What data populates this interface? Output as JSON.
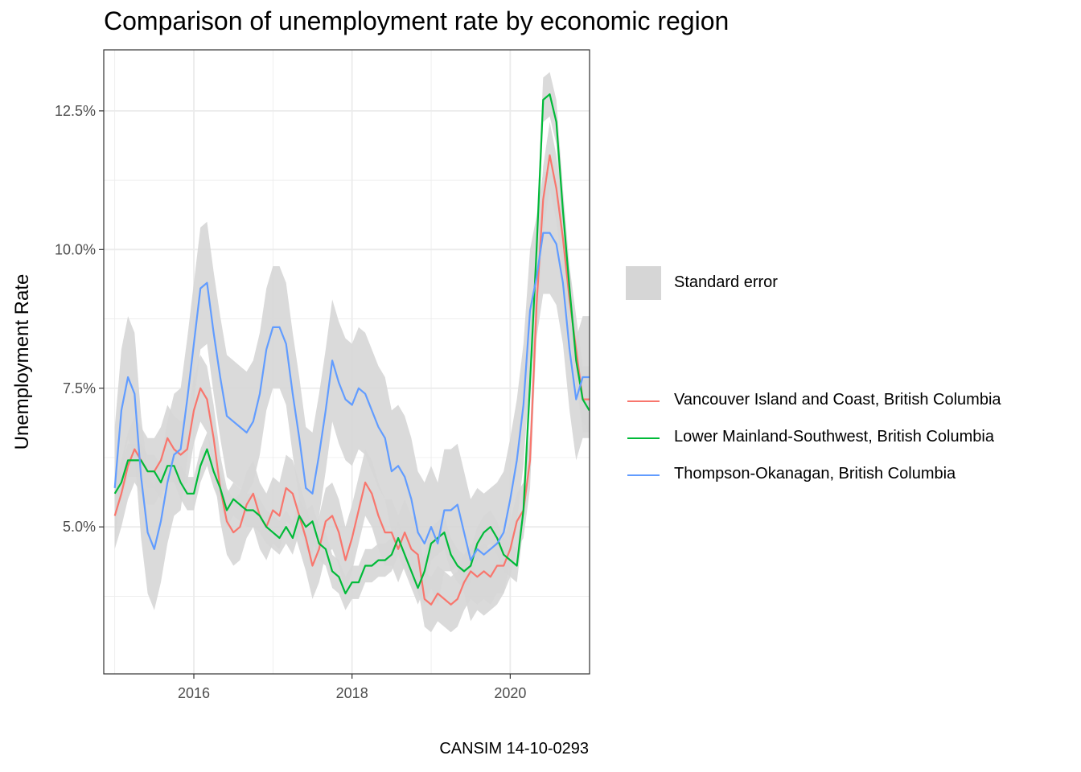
{
  "chart_data": {
    "type": "line",
    "title": "Comparison of unemployment rate by economic region",
    "ylabel": "Unemployment Rate",
    "xlabel": "",
    "caption": "CANSIM 14-10-0293",
    "x_ticks": [
      "2016",
      "2018",
      "2020"
    ],
    "y_ticks": [
      "5.0%",
      "7.5%",
      "10.0%",
      "12.5%"
    ],
    "y_tick_values": [
      5.0,
      7.5,
      10.0,
      12.5
    ],
    "xlim": [
      2014.861,
      2021.003
    ],
    "ylim": [
      2.35,
      13.6
    ],
    "grid": true,
    "legend_position": "right",
    "band_legend_label": "Standard error",
    "band_color": "#d6d6d6",
    "series": [
      {
        "name": "Vancouver Island and Coast, British Columbia",
        "color": "#F8766D",
        "start": "2015-01",
        "values": [
          5.2,
          5.6,
          6.1,
          6.4,
          6.2,
          6.0,
          6.0,
          6.2,
          6.6,
          6.4,
          6.3,
          6.4,
          7.1,
          7.5,
          7.3,
          6.6,
          5.7,
          5.1,
          4.9,
          5.0,
          5.4,
          5.6,
          5.2,
          5.0,
          5.3,
          5.2,
          5.7,
          5.6,
          5.2,
          4.8,
          4.3,
          4.6,
          5.1,
          5.2,
          4.9,
          4.4,
          4.8,
          5.3,
          5.8,
          5.6,
          5.2,
          4.9,
          4.9,
          4.6,
          4.9,
          4.6,
          4.5,
          3.7,
          3.6,
          3.8,
          3.7,
          3.6,
          3.7,
          4.0,
          4.2,
          4.1,
          4.2,
          4.1,
          4.3,
          4.3,
          4.6,
          5.1,
          5.3,
          6.2,
          9.0,
          10.9,
          11.7,
          11.1,
          10.2,
          9.1,
          8.2,
          7.3,
          7.3
        ],
        "se": [
          0.6,
          0.6,
          0.6,
          0.6,
          0.6,
          0.6,
          0.6,
          0.6,
          0.6,
          0.6,
          0.6,
          0.6,
          0.6,
          0.6,
          0.6,
          0.6,
          0.6,
          0.6,
          0.6,
          0.6,
          0.6,
          0.6,
          0.6,
          0.6,
          0.6,
          0.6,
          0.6,
          0.6,
          0.6,
          0.6,
          0.6,
          0.6,
          0.6,
          0.6,
          0.6,
          0.6,
          0.6,
          0.6,
          0.6,
          0.6,
          0.6,
          0.6,
          0.6,
          0.6,
          0.6,
          0.6,
          0.6,
          0.5,
          0.5,
          0.5,
          0.5,
          0.5,
          0.5,
          0.5,
          0.5,
          0.5,
          0.5,
          0.5,
          0.5,
          0.5,
          0.5,
          0.5,
          0.5,
          0.5,
          0.6,
          0.6,
          0.6,
          0.6,
          0.6,
          0.6,
          0.6,
          0.6,
          0.6
        ]
      },
      {
        "name": "Lower Mainland-Southwest, British Columbia",
        "color": "#00BA38",
        "start": "2015-01",
        "values": [
          5.6,
          5.8,
          6.2,
          6.2,
          6.2,
          6.0,
          6.0,
          5.8,
          6.1,
          6.1,
          5.8,
          5.6,
          5.6,
          6.1,
          6.4,
          6.0,
          5.7,
          5.3,
          5.5,
          5.4,
          5.3,
          5.3,
          5.2,
          5.0,
          4.9,
          4.8,
          5.0,
          4.8,
          5.2,
          5.0,
          5.1,
          4.7,
          4.6,
          4.2,
          4.1,
          3.8,
          4.0,
          4.0,
          4.3,
          4.3,
          4.4,
          4.4,
          4.5,
          4.8,
          4.5,
          4.2,
          3.9,
          4.2,
          4.7,
          4.8,
          4.9,
          4.5,
          4.3,
          4.2,
          4.3,
          4.7,
          4.9,
          5.0,
          4.8,
          4.5,
          4.4,
          4.3,
          5.3,
          7.6,
          10.0,
          12.7,
          12.8,
          12.3,
          10.7,
          9.3,
          8.0,
          7.3,
          7.1
        ],
        "se": [
          0.3,
          0.3,
          0.3,
          0.3,
          0.3,
          0.3,
          0.3,
          0.3,
          0.3,
          0.3,
          0.3,
          0.3,
          0.3,
          0.3,
          0.3,
          0.3,
          0.3,
          0.3,
          0.3,
          0.3,
          0.3,
          0.3,
          0.3,
          0.3,
          0.3,
          0.3,
          0.3,
          0.3,
          0.3,
          0.3,
          0.3,
          0.3,
          0.3,
          0.3,
          0.3,
          0.3,
          0.3,
          0.3,
          0.3,
          0.3,
          0.3,
          0.3,
          0.3,
          0.3,
          0.3,
          0.3,
          0.3,
          0.3,
          0.3,
          0.3,
          0.3,
          0.3,
          0.3,
          0.3,
          0.3,
          0.3,
          0.3,
          0.3,
          0.3,
          0.3,
          0.3,
          0.3,
          0.3,
          0.4,
          0.4,
          0.4,
          0.4,
          0.4,
          0.4,
          0.4,
          0.4,
          0.4,
          0.4
        ]
      },
      {
        "name": "Thompson-Okanagan, British Columbia",
        "color": "#619CFF",
        "start": "2015-01",
        "values": [
          5.7,
          7.1,
          7.7,
          7.4,
          5.9,
          4.9,
          4.6,
          5.1,
          5.8,
          6.3,
          6.4,
          7.3,
          8.3,
          9.3,
          9.4,
          8.5,
          7.7,
          7.0,
          6.9,
          6.8,
          6.7,
          6.9,
          7.4,
          8.2,
          8.6,
          8.6,
          8.3,
          7.4,
          6.6,
          5.7,
          5.6,
          6.3,
          7.1,
          8.0,
          7.6,
          7.3,
          7.2,
          7.5,
          7.4,
          7.1,
          6.8,
          6.6,
          6.0,
          6.1,
          5.9,
          5.5,
          4.9,
          4.7,
          5.0,
          4.7,
          5.3,
          5.3,
          5.4,
          4.9,
          4.4,
          4.6,
          4.5,
          4.6,
          4.7,
          4.9,
          5.5,
          6.2,
          7.2,
          8.9,
          9.5,
          10.3,
          10.3,
          10.1,
          9.4,
          8.2,
          7.3,
          7.7,
          7.7
        ],
        "se": [
          1.1,
          1.1,
          1.1,
          1.1,
          1.1,
          1.1,
          1.1,
          1.1,
          1.1,
          1.1,
          1.1,
          1.1,
          1.1,
          1.1,
          1.1,
          1.1,
          1.1,
          1.1,
          1.1,
          1.1,
          1.1,
          1.1,
          1.1,
          1.1,
          1.1,
          1.1,
          1.1,
          1.1,
          1.1,
          1.1,
          1.1,
          1.1,
          1.1,
          1.1,
          1.1,
          1.1,
          1.1,
          1.1,
          1.1,
          1.1,
          1.1,
          1.1,
          1.1,
          1.1,
          1.1,
          1.1,
          1.1,
          1.1,
          1.1,
          1.1,
          1.1,
          1.1,
          1.1,
          1.1,
          1.1,
          1.1,
          1.1,
          1.1,
          1.1,
          1.1,
          1.1,
          1.1,
          1.1,
          1.1,
          1.1,
          1.1,
          1.1,
          1.1,
          1.1,
          1.1,
          1.1,
          1.1,
          1.1
        ]
      }
    ]
  }
}
